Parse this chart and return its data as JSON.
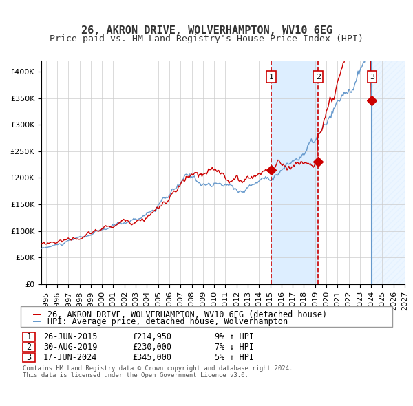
{
  "title": "26, AKRON DRIVE, WOLVERHAMPTON, WV10 6EG",
  "subtitle": "Price paid vs. HM Land Registry's House Price Index (HPI)",
  "legend_line1": "26, AKRON DRIVE, WOLVERHAMPTON, WV10 6EG (detached house)",
  "legend_line2": "HPI: Average price, detached house, Wolverhampton",
  "sale_dates": [
    "2015-06-26",
    "2019-08-30",
    "2024-06-17"
  ],
  "sale_prices": [
    214950,
    230000,
    345000
  ],
  "sale_labels": [
    "1",
    "2",
    "3"
  ],
  "sale_info": [
    {
      "label": "1",
      "date": "26-JUN-2015",
      "price": "£214,950",
      "pct": "9%",
      "dir": "↑",
      "ref": "HPI"
    },
    {
      "label": "2",
      "date": "30-AUG-2019",
      "price": "£230,000",
      "pct": "7%",
      "dir": "↓",
      "ref": "HPI"
    },
    {
      "label": "3",
      "date": "17-JUN-2024",
      "price": "£345,000",
      "pct": "5%",
      "dir": "↑",
      "ref": "HPI"
    }
  ],
  "hpi_color": "#6699cc",
  "price_color": "#cc0000",
  "sale_marker_color": "#cc0000",
  "vline_color": "#cc0000",
  "solid_vline_color": "#6699cc",
  "shading_color": "#ddeeff",
  "hatch_color": "#aabbcc",
  "grid_color": "#cccccc",
  "background_color": "#ffffff",
  "ylabel_color": "#333333",
  "title_color": "#333333",
  "ylim": [
    0,
    420000
  ],
  "yticks": [
    0,
    50000,
    100000,
    150000,
    200000,
    250000,
    300000,
    350000,
    400000
  ],
  "ytick_labels": [
    "£0",
    "£50K",
    "£100K",
    "£150K",
    "£200K",
    "£250K",
    "£300K",
    "£350K",
    "£400K"
  ],
  "copyright": "Contains HM Land Registry data © Crown copyright and database right 2024.\nThis data is licensed under the Open Government Licence v3.0.",
  "title_fontsize": 11,
  "subtitle_fontsize": 9.5,
  "tick_fontsize": 8,
  "legend_fontsize": 8.5,
  "info_fontsize": 8.5
}
